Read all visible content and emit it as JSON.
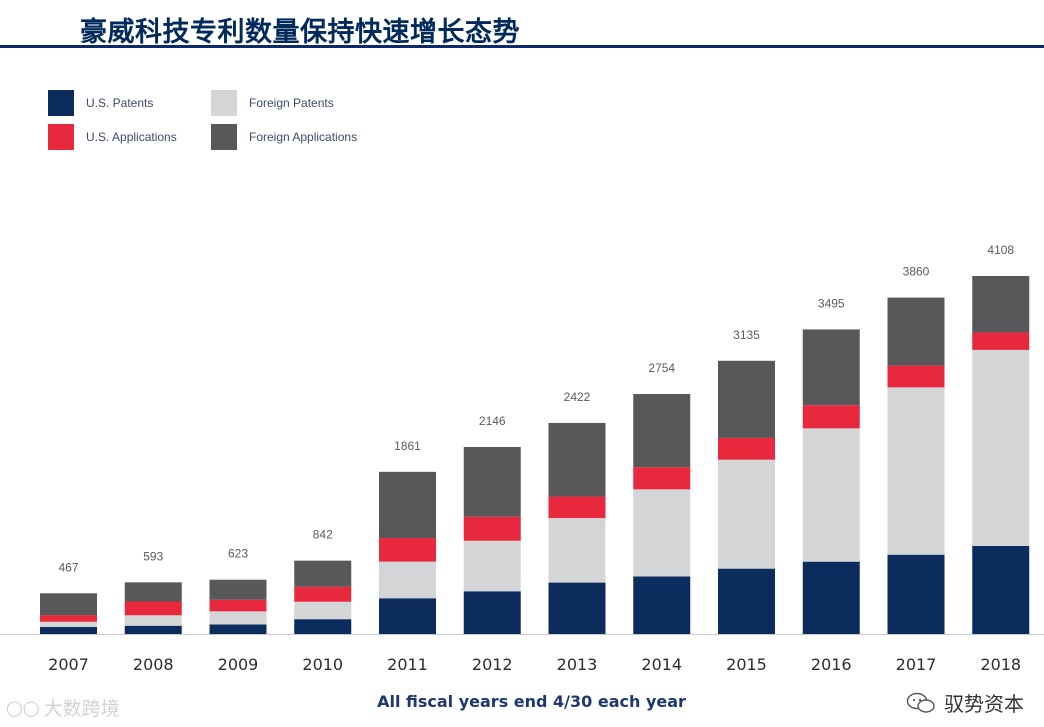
{
  "page": {
    "title": "豪威科技专利数量保持快速增长态势",
    "footnote": "All fiscal years end 4/30 each year",
    "watermark_left": "大数跨境",
    "watermark_right": "驭势资本"
  },
  "colors": {
    "us_patents": "#0d2c5e",
    "us_applications": "#e8283c",
    "foreign_patents": "#d4d5d7",
    "foreign_applications": "#58585b",
    "title": "#002a5c",
    "rule": "#0b2a6b"
  },
  "chart_data": {
    "type": "bar",
    "stacked": true,
    "categories": [
      "2007",
      "2008",
      "2009",
      "2010",
      "2011",
      "2012",
      "2013",
      "2014",
      "2015",
      "2016",
      "2017",
      "2018"
    ],
    "totals": [
      467,
      593,
      623,
      842,
      1861,
      2146,
      2422,
      2754,
      3135,
      3495,
      3860,
      4108
    ],
    "series": [
      {
        "name": "U.S. Patents",
        "color": "#0d2c5e",
        "values": [
          80,
          95,
          110,
          170,
          410,
          490,
          590,
          660,
          750,
          830,
          910,
          1010
        ]
      },
      {
        "name": "Foreign Patents",
        "color": "#d4d5d7",
        "values": [
          60,
          120,
          150,
          200,
          420,
          580,
          740,
          1000,
          1250,
          1530,
          1920,
          2250
        ]
      },
      {
        "name": "U.S. Applications",
        "color": "#e8283c",
        "values": [
          77,
          158,
          133,
          172,
          271,
          276,
          248,
          254,
          250,
          265,
          250,
          200
        ]
      },
      {
        "name": "Foreign Applications",
        "color": "#58585b",
        "values": [
          250,
          220,
          230,
          300,
          760,
          800,
          844,
          840,
          885,
          870,
          780,
          648
        ]
      }
    ],
    "legend": [
      {
        "label": "U.S. Patents",
        "color": "#0d2c5e"
      },
      {
        "label": "Foreign Patents",
        "color": "#d4d5d7"
      },
      {
        "label": "U.S. Applications",
        "color": "#e8283c"
      },
      {
        "label": "Foreign Applications",
        "color": "#58585b"
      }
    ],
    "legend_position": "top-left",
    "title": "",
    "xlabel": "",
    "ylabel": "",
    "ylim": [
      0,
      4108
    ],
    "grid": false
  }
}
